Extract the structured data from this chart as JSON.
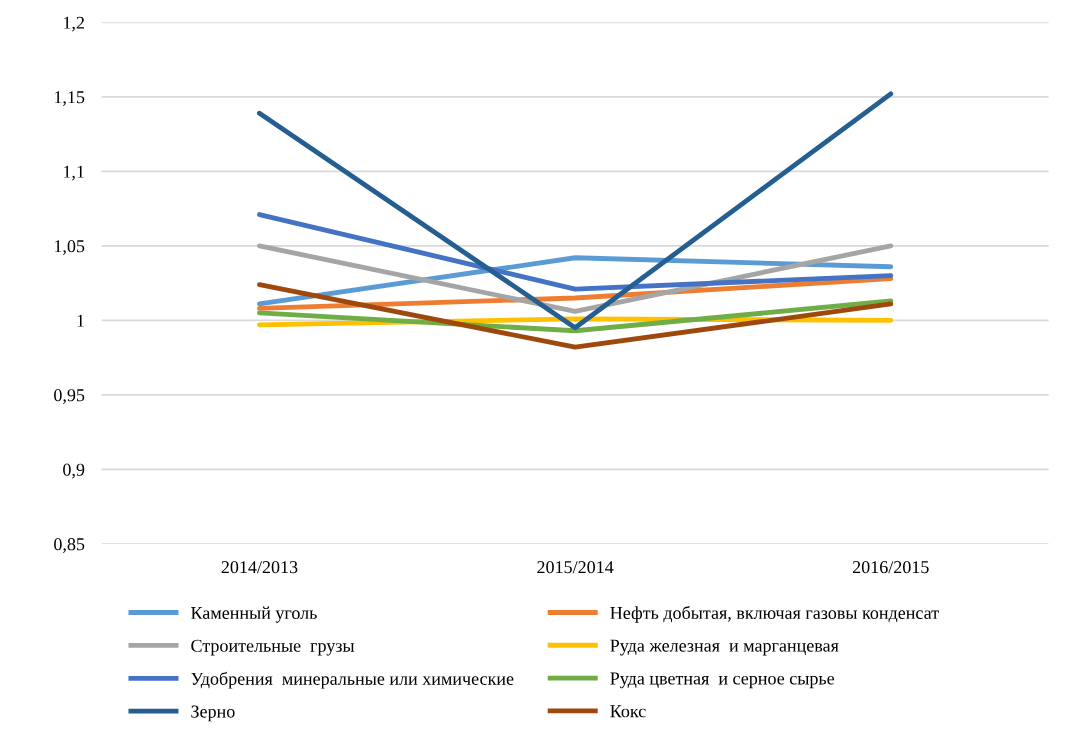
{
  "chart_data": {
    "type": "line",
    "categories": [
      "2014/2013",
      "2015/2014",
      "2016/2015"
    ],
    "series": [
      {
        "name": "Каменный уголь",
        "color": "#5b9bd5",
        "values": [
          1.011,
          1.042,
          1.036
        ]
      },
      {
        "name": "Нефть добытая, включая газовы конденсат",
        "color": "#ed7d31",
        "values": [
          1.008,
          1.015,
          1.028
        ]
      },
      {
        "name": "Строительные  грузы",
        "color": "#a5a5a5",
        "values": [
          1.05,
          1.006,
          1.05
        ]
      },
      {
        "name": "Руда железная  и марганцевая",
        "color": "#ffc000",
        "values": [
          0.997,
          1.001,
          1.0
        ]
      },
      {
        "name": "Удобрения  минеральные или химические",
        "color": "#4472c4",
        "values": [
          1.071,
          1.021,
          1.03
        ]
      },
      {
        "name": "Руда цветная  и серное сырье",
        "color": "#70ad47",
        "values": [
          1.005,
          0.993,
          1.013
        ]
      },
      {
        "name": "Зерно",
        "color": "#255e91",
        "values": [
          1.139,
          0.995,
          1.152
        ]
      },
      {
        "name": "Кокс",
        "color": "#9e480e",
        "values": [
          1.024,
          0.982,
          1.011
        ]
      }
    ],
    "ylim": [
      0.85,
      1.2
    ],
    "yticks": [
      {
        "value": 0.85,
        "label": "0,85"
      },
      {
        "value": 0.9,
        "label": "0,9"
      },
      {
        "value": 0.95,
        "label": "0,95"
      },
      {
        "value": 1,
        "label": "1"
      },
      {
        "value": 1.05,
        "label": "1,05"
      },
      {
        "value": 1.1,
        "label": "1,1"
      },
      {
        "value": 1.15,
        "label": "1,15"
      },
      {
        "value": 1.2,
        "label": "1,2"
      }
    ],
    "grid": "y",
    "legend": "bottom",
    "marker": "none",
    "line_style": "solid"
  }
}
